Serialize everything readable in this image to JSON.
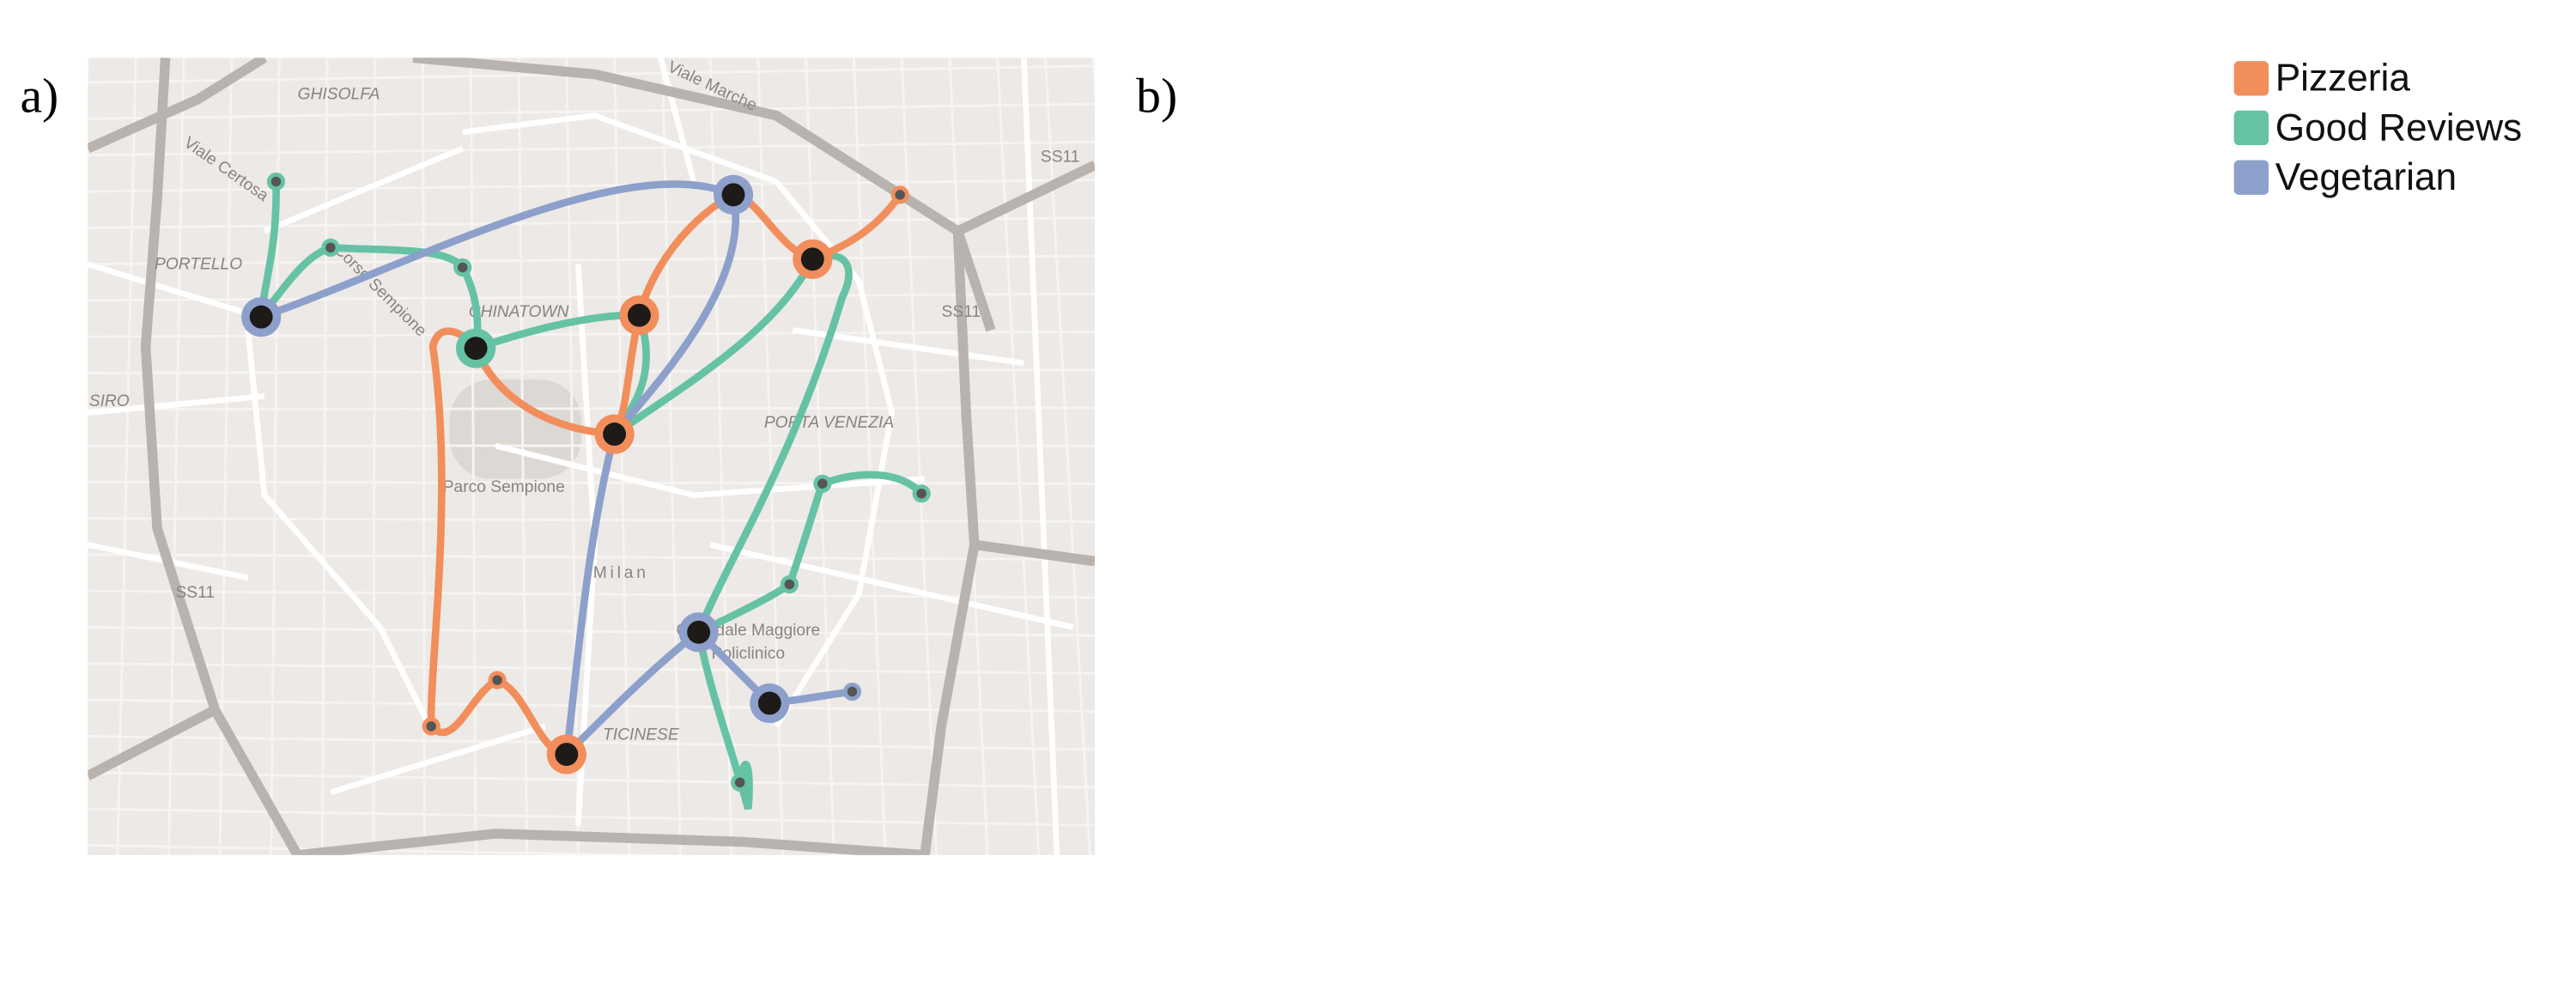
{
  "panels": [
    {
      "label": "a)"
    },
    {
      "label": "b)"
    }
  ],
  "legend": [
    {
      "name": "Pizzeria",
      "color": "#f28e5c"
    },
    {
      "name": "Good Reviews",
      "color": "#66c2a5"
    },
    {
      "name": "Vegetarian",
      "color": "#8da0cb"
    }
  ],
  "map_labels": {
    "district_1": "GHISOLFA",
    "street_1": "Viale Marche",
    "street_2": "Viale Certosa",
    "district_2": "PORTELLO",
    "district_3": "CHINATOWN",
    "street_3": "Corso Sempione",
    "park": "Parco Sempione",
    "district_4": "PORTA VENEZIA",
    "city": "Milan",
    "hospital_1": "Ospedale Maggiore",
    "hospital_2": "Policlinico",
    "district_5": "TICINESE",
    "road": "SS11",
    "district_6": "SIRO"
  }
}
